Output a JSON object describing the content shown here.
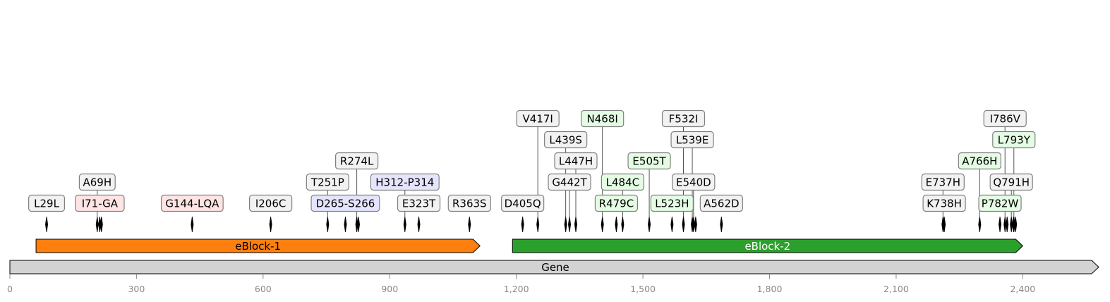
{
  "axis": {
    "min": 0,
    "max": 2580,
    "ticks": [
      0,
      300,
      600,
      900,
      1200,
      1500,
      1800,
      2100,
      2400
    ],
    "tick_labels": [
      "0",
      "300",
      "600",
      "900",
      "1,200",
      "1,500",
      "1,800",
      "2,100",
      "2,400"
    ]
  },
  "gene": {
    "label": "Gene",
    "start": 0,
    "end": 2580,
    "color": "#d3d3d3"
  },
  "blocks": [
    {
      "label": "eBlock-1",
      "start": 62,
      "end": 1114,
      "color": "#ff7f0e",
      "text_color": "#000000"
    },
    {
      "label": "eBlock-2",
      "start": 1191,
      "end": 2400,
      "color": "#2ca02c",
      "text_color": "#ffffff"
    }
  ],
  "mutations": [
    {
      "label": "L29L",
      "pos": 87,
      "row": 0,
      "type": "grey"
    },
    {
      "label": "I71-GA",
      "pos": 213,
      "row": 0,
      "type": "red"
    },
    {
      "label": "A69H",
      "pos": 207,
      "row": 1,
      "type": "grey"
    },
    {
      "label": "G144-LQA",
      "pos": 432,
      "row": 0,
      "type": "red"
    },
    {
      "label": "I206C",
      "pos": 618,
      "row": 0,
      "type": "grey"
    },
    {
      "label": "D265-S266",
      "pos": 795,
      "row": 0,
      "type": "blue"
    },
    {
      "label": "T251P",
      "pos": 753,
      "row": 1,
      "type": "grey"
    },
    {
      "label": "R274L",
      "pos": 822,
      "row": 2,
      "type": "grey"
    },
    {
      "label": "E323T",
      "pos": 969,
      "row": 0,
      "type": "grey"
    },
    {
      "label": "H312-P314",
      "pos": 936,
      "row": 1,
      "type": "blue"
    },
    {
      "label": "R363S",
      "pos": 1089,
      "row": 0,
      "type": "grey"
    },
    {
      "label": "D405Q",
      "pos": 1215,
      "row": 0,
      "type": "grey"
    },
    {
      "label": "V417I",
      "pos": 1251,
      "row": 4,
      "type": "grey"
    },
    {
      "label": "G442T",
      "pos": 1326,
      "row": 1,
      "type": "grey"
    },
    {
      "label": "L439S",
      "pos": 1317,
      "row": 3,
      "type": "grey"
    },
    {
      "label": "L447H",
      "pos": 1341,
      "row": 2,
      "type": "grey"
    },
    {
      "label": "R479C",
      "pos": 1437,
      "row": 0,
      "type": "green"
    },
    {
      "label": "N468I",
      "pos": 1404,
      "row": 4,
      "type": "green"
    },
    {
      "label": "L484C",
      "pos": 1452,
      "row": 1,
      "type": "green"
    },
    {
      "label": "E505T",
      "pos": 1515,
      "row": 2,
      "type": "green"
    },
    {
      "label": "L523H",
      "pos": 1569,
      "row": 0,
      "type": "green"
    },
    {
      "label": "F532I",
      "pos": 1596,
      "row": 4,
      "type": "grey"
    },
    {
      "label": "E540D",
      "pos": 1620,
      "row": 1,
      "type": "grey"
    },
    {
      "label": "L539E",
      "pos": 1617,
      "row": 3,
      "type": "grey"
    },
    {
      "label": "A562D",
      "pos": 1686,
      "row": 0,
      "type": "grey"
    },
    {
      "label": "K738H",
      "pos": 2214,
      "row": 0,
      "type": "grey"
    },
    {
      "label": "E737H",
      "pos": 2211,
      "row": 1,
      "type": "grey"
    },
    {
      "label": "P782W",
      "pos": 2346,
      "row": 0,
      "type": "green"
    },
    {
      "label": "A766H",
      "pos": 2298,
      "row": 2,
      "type": "green"
    },
    {
      "label": "Q791H",
      "pos": 2373,
      "row": 1,
      "type": "grey"
    },
    {
      "label": "I786V",
      "pos": 2358,
      "row": 4,
      "type": "grey"
    },
    {
      "label": "L793Y",
      "pos": 2379,
      "row": 3,
      "type": "green"
    }
  ],
  "extra_markers": [
    2363,
    2378,
    2383,
    1625,
    217,
    826
  ],
  "styles": {
    "grey": {
      "fill": "#f2f2f2",
      "stroke": "#808080"
    },
    "red": {
      "fill": "#ffe4e4",
      "stroke": "#808080"
    },
    "blue": {
      "fill": "#e4e4fc",
      "stroke": "#808080"
    },
    "green": {
      "fill": "#e4fce4",
      "stroke": "#808080"
    }
  }
}
